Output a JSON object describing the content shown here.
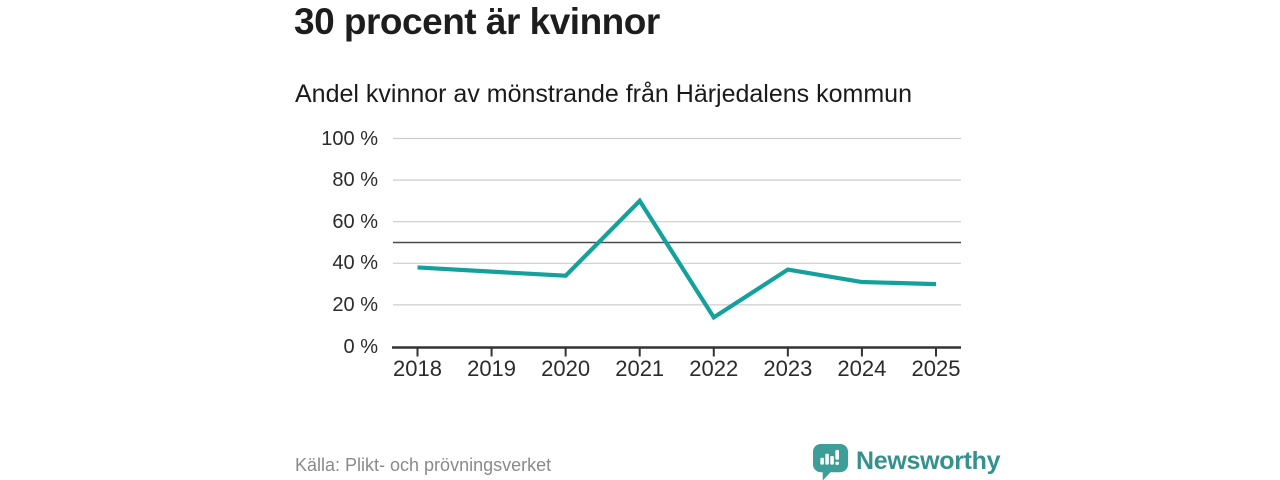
{
  "header": {
    "title": "30 procent är kvinnor",
    "subtitle": "Andel kvinnor av mönstrande från Härjedalens kommun"
  },
  "footer": {
    "source": "Källa: Plikt- och prövningsverket",
    "brand": "Newsworthy"
  },
  "colors": {
    "line": "#14a19b",
    "grid": "#cdcdcd",
    "reference_line": "#4a4a4a",
    "axis": "#333333",
    "title_text": "#1d1d1d",
    "label_text": "#2b2b2b",
    "muted_text": "#8a8a8a",
    "brand_teal": "#3d9e97",
    "brand_text": "#35918c"
  },
  "chart_data": {
    "type": "line",
    "title": "30 procent är kvinnor",
    "subtitle": "Andel kvinnor av mönstrande från Härjedalens kommun",
    "categories": [
      "2018",
      "2019",
      "2020",
      "2021",
      "2022",
      "2023",
      "2024",
      "2025"
    ],
    "series": [
      {
        "name": "Andel kvinnor av mönstrande",
        "values": [
          38,
          36,
          34,
          70,
          14,
          37,
          31,
          30
        ]
      }
    ],
    "unit": "%",
    "ylim": [
      0,
      100
    ],
    "yticks": [
      0,
      20,
      40,
      60,
      80,
      100
    ],
    "ytick_labels": [
      "0 %",
      "20 %",
      "40 %",
      "60 %",
      "80 %",
      "100 %"
    ],
    "reference_line": 50,
    "grid": "horizontal",
    "legend": "none",
    "source": "Källa: Plikt- och prövningsverket"
  }
}
